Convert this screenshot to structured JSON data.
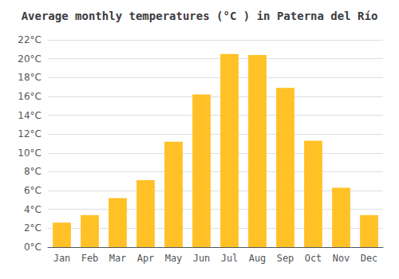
{
  "chart_data": {
    "type": "bar",
    "title": "Average monthly temperatures (°C ) in Paterna del Río",
    "categories": [
      "Jan",
      "Feb",
      "Mar",
      "Apr",
      "May",
      "Jun",
      "Jul",
      "Aug",
      "Sep",
      "Oct",
      "Nov",
      "Dec"
    ],
    "values": [
      2.6,
      3.4,
      5.2,
      7.1,
      11.2,
      16.2,
      20.5,
      20.4,
      16.9,
      11.3,
      6.3,
      3.4
    ],
    "color": "#FFC125",
    "ylim": [
      0,
      22
    ],
    "yticks": [
      {
        "value": 0,
        "label": "0°C"
      },
      {
        "value": 2,
        "label": "2°C"
      },
      {
        "value": 4,
        "label": "4°C"
      },
      {
        "value": 6,
        "label": "6°C"
      },
      {
        "value": 8,
        "label": "8°C"
      },
      {
        "value": 10,
        "label": "10°C"
      },
      {
        "value": 12,
        "label": "12°C"
      },
      {
        "value": 14,
        "label": "14°C"
      },
      {
        "value": 16,
        "label": "16°C"
      },
      {
        "value": 18,
        "label": "18°C"
      },
      {
        "value": 20,
        "label": "20°C"
      },
      {
        "value": 22,
        "label": "22°C"
      }
    ],
    "grid": true
  }
}
